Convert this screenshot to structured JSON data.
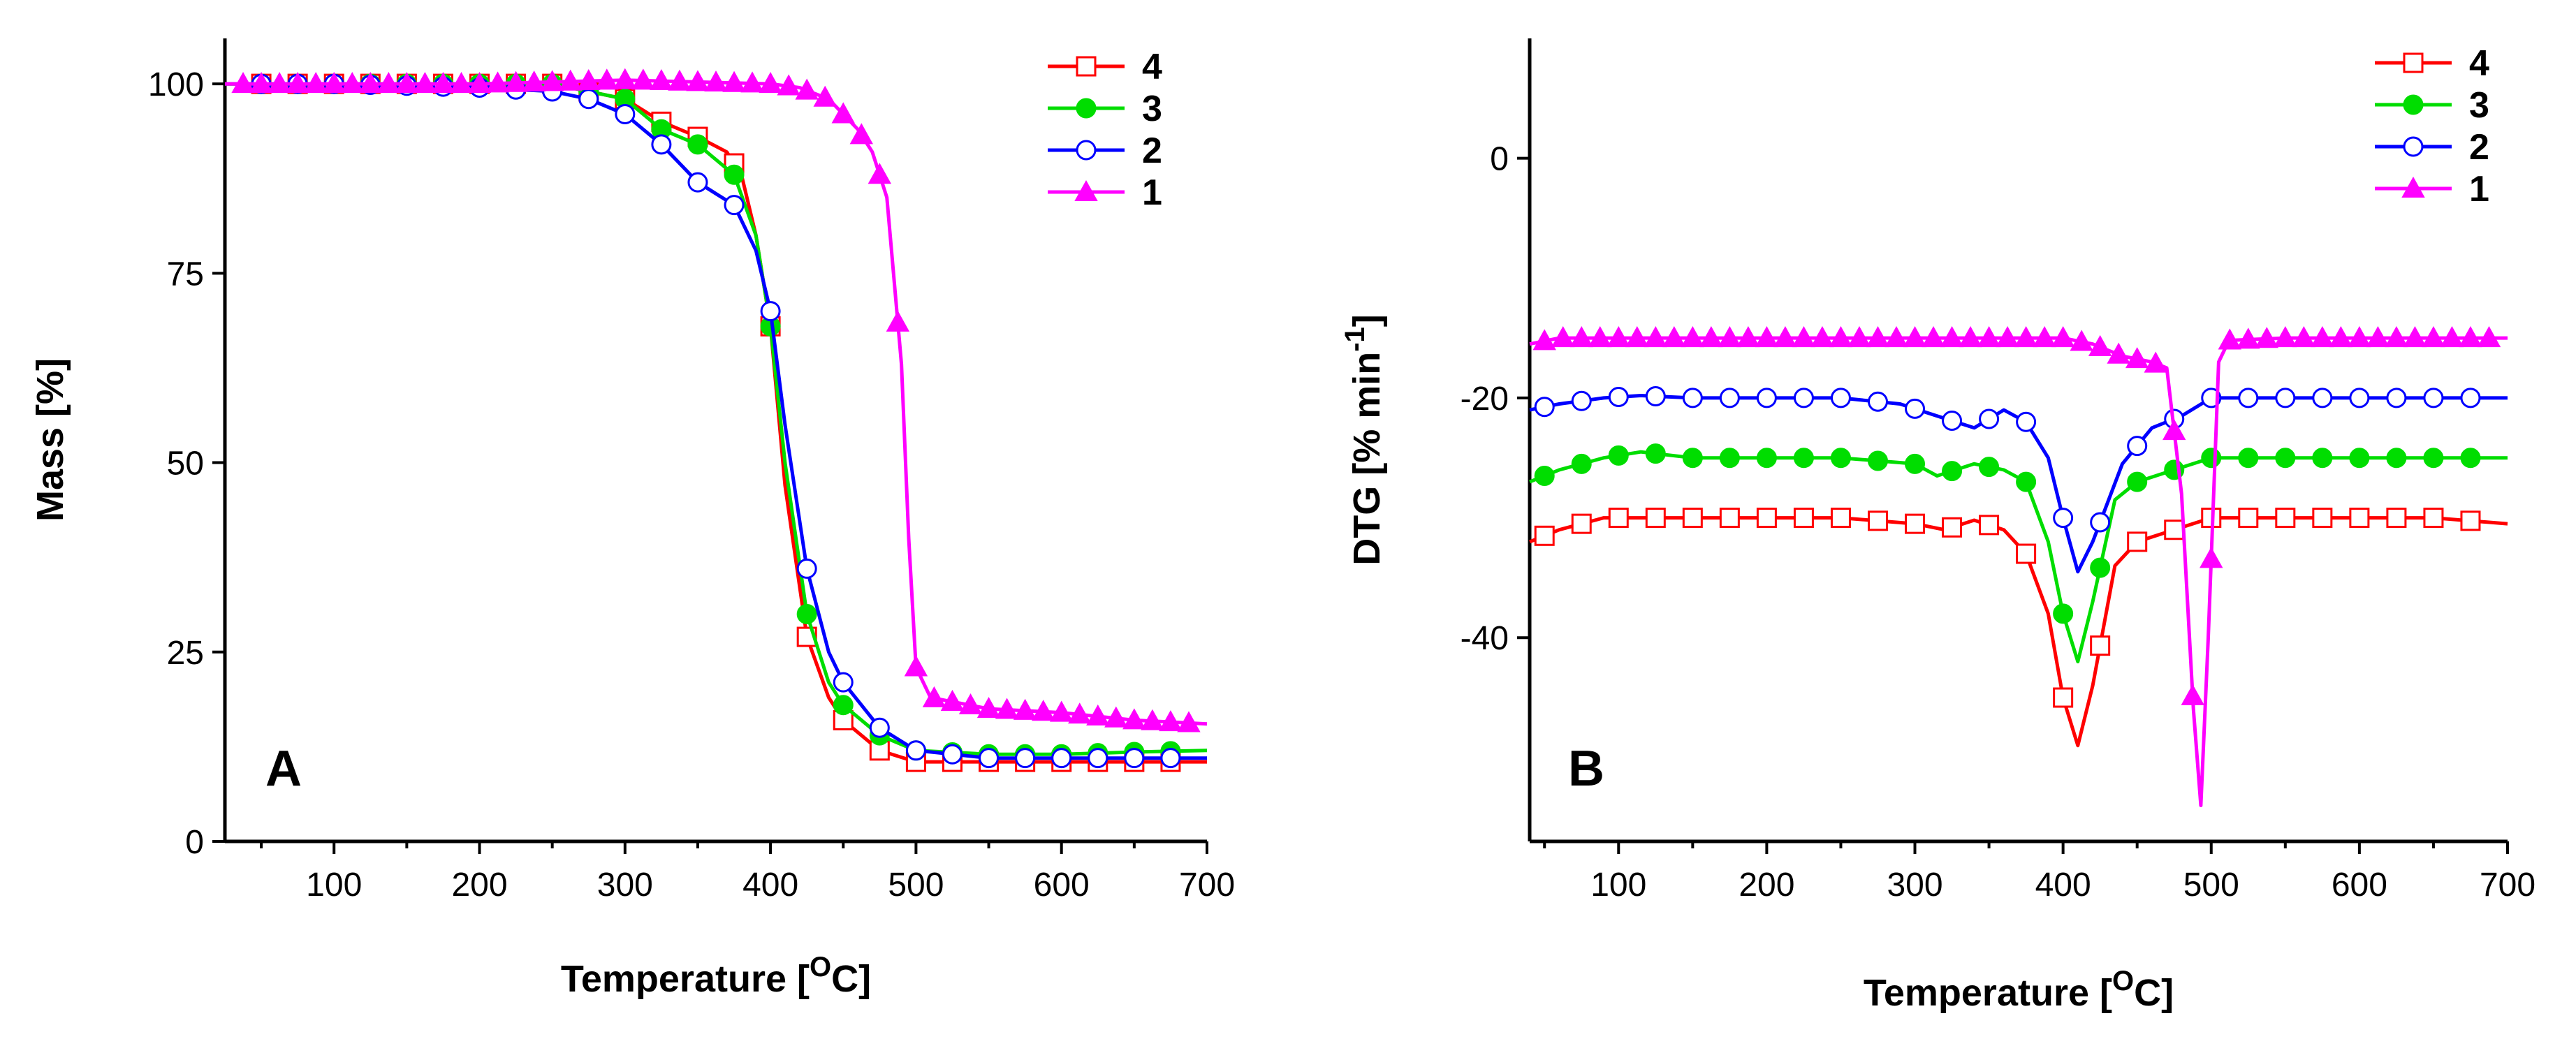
{
  "chart_data": [
    {
      "type": "line",
      "panel_label": "A",
      "xlabel": "Temperature",
      "xlabel_unit": "O",
      "xlabel_unit_suffix": "C",
      "ylabel": "Mass [%]",
      "xlim": [
        25,
        700
      ],
      "ylim": [
        0,
        106
      ],
      "xticks": [
        100,
        200,
        300,
        400,
        500,
        600,
        700
      ],
      "yticks": [
        0,
        25,
        50,
        75,
        100
      ],
      "legend": [
        "4",
        "3",
        "2",
        "1"
      ],
      "legend_position": "top-right",
      "series": [
        {
          "name": "4",
          "color": "#ff0000",
          "marker": "square-open",
          "x": [
            25,
            100,
            200,
            250,
            300,
            325,
            350,
            370,
            380,
            390,
            400,
            410,
            425,
            440,
            450,
            475,
            500,
            550,
            600,
            650,
            700
          ],
          "y": [
            100,
            100,
            100,
            100,
            98,
            95,
            93,
            91,
            88,
            80,
            68,
            47,
            27,
            19,
            16,
            12,
            10.5,
            10.5,
            10.5,
            10.5,
            10.5
          ]
        },
        {
          "name": "3",
          "color": "#00dd00",
          "marker": "circle-filled",
          "x": [
            25,
            100,
            200,
            250,
            300,
            325,
            350,
            375,
            390,
            400,
            410,
            425,
            440,
            450,
            475,
            500,
            550,
            600,
            650,
            700
          ],
          "y": [
            100,
            100,
            100,
            100,
            98,
            94,
            92,
            88,
            80,
            68,
            50,
            30,
            21,
            18,
            14,
            12,
            11.5,
            11.5,
            11.8,
            12
          ]
        },
        {
          "name": "2",
          "color": "#0000ff",
          "marker": "circle-open",
          "x": [
            25,
            100,
            200,
            250,
            275,
            300,
            325,
            350,
            375,
            390,
            400,
            410,
            425,
            440,
            450,
            475,
            500,
            525,
            550,
            600,
            650,
            700
          ],
          "y": [
            100,
            100,
            99.5,
            99,
            98,
            96,
            92,
            87,
            84,
            78,
            70,
            55,
            36,
            25,
            21,
            15,
            12,
            11.5,
            11,
            11,
            11,
            11
          ]
        },
        {
          "name": "1",
          "color": "#ff00ff",
          "marker": "triangle-filled",
          "x": [
            25,
            100,
            200,
            300,
            400,
            420,
            440,
            450,
            460,
            470,
            480,
            490,
            495,
            500,
            510,
            550,
            600,
            650,
            700
          ],
          "y": [
            100,
            100,
            100,
            100.5,
            100,
            99.5,
            98,
            96,
            94,
            91,
            85,
            63,
            40,
            23,
            19,
            17.5,
            17,
            16,
            15.5
          ]
        }
      ]
    },
    {
      "type": "line",
      "panel_label": "B",
      "xlabel": "Temperature",
      "xlabel_unit": "O",
      "xlabel_unit_suffix": "C",
      "ylabel": "DTG [% min",
      "ylabel_sup": "-1",
      "ylabel_suffix": "]",
      "xlim": [
        40,
        700
      ],
      "ylim": [
        -57,
        10
      ],
      "xticks": [
        100,
        200,
        300,
        400,
        500,
        600,
        700
      ],
      "yticks": [
        -40,
        -20,
        0
      ],
      "legend": [
        "4",
        "3",
        "2",
        "1"
      ],
      "legend_position": "top-right",
      "series": [
        {
          "name": "4",
          "color": "#ff0000",
          "marker": "square-open",
          "x": [
            40,
            60,
            90,
            150,
            200,
            250,
            300,
            320,
            340,
            360,
            375,
            390,
            400,
            410,
            420,
            435,
            450,
            475,
            500,
            550,
            600,
            650,
            700
          ],
          "y": [
            -32,
            -31,
            -30,
            -30,
            -30,
            -30,
            -30.5,
            -31,
            -30.2,
            -31,
            -33,
            -38,
            -45,
            -49,
            -44,
            -34,
            -32,
            -31,
            -30,
            -30,
            -30,
            -30,
            -30.5
          ]
        },
        {
          "name": "3",
          "color": "#00dd00",
          "marker": "circle-filled",
          "x": [
            40,
            60,
            90,
            115,
            150,
            200,
            250,
            300,
            315,
            340,
            360,
            375,
            390,
            400,
            410,
            420,
            435,
            450,
            475,
            500,
            550,
            600,
            650,
            700
          ],
          "y": [
            -27,
            -26,
            -25,
            -24.5,
            -25,
            -25,
            -25,
            -25.5,
            -26.5,
            -25.5,
            -26,
            -27,
            -32,
            -38,
            -42,
            -37,
            -28.5,
            -27,
            -26,
            -25,
            -25,
            -25,
            -25,
            -25
          ]
        },
        {
          "name": "2",
          "color": "#0000ff",
          "marker": "circle-open",
          "x": [
            40,
            60,
            90,
            115,
            150,
            200,
            250,
            290,
            315,
            340,
            360,
            375,
            390,
            400,
            410,
            420,
            440,
            460,
            480,
            500,
            550,
            600,
            650,
            700
          ],
          "y": [
            -21,
            -20.5,
            -20,
            -19.8,
            -20,
            -20,
            -20,
            -20.5,
            -21.5,
            -22.5,
            -21,
            -22,
            -25,
            -30,
            -34.5,
            -32,
            -25.5,
            -22.5,
            -21.5,
            -20,
            -20,
            -20,
            -20,
            -20
          ]
        },
        {
          "name": "1",
          "color": "#ff00ff",
          "marker": "triangle-filled",
          "x": [
            40,
            60,
            100,
            200,
            300,
            400,
            420,
            440,
            460,
            470,
            480,
            488,
            493,
            498,
            505,
            512,
            550,
            600,
            650,
            700
          ],
          "y": [
            -15.5,
            -15,
            -15,
            -15,
            -15,
            -15,
            -15.5,
            -16.5,
            -17,
            -17.5,
            -28,
            -46,
            -54,
            -40,
            -17,
            -15.2,
            -15,
            -15,
            -15,
            -15
          ]
        }
      ]
    }
  ]
}
